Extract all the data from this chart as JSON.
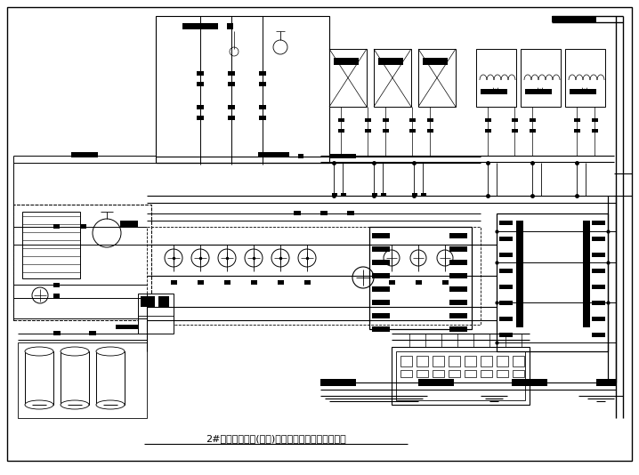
{
  "title": "2#制冷换热机房(公建)空调冷热水制备系统原理图",
  "bg_color": "#ffffff",
  "line_color": "#000000",
  "title_fontsize": 8,
  "fig_width": 7.18,
  "fig_height": 5.34,
  "dpi": 100
}
